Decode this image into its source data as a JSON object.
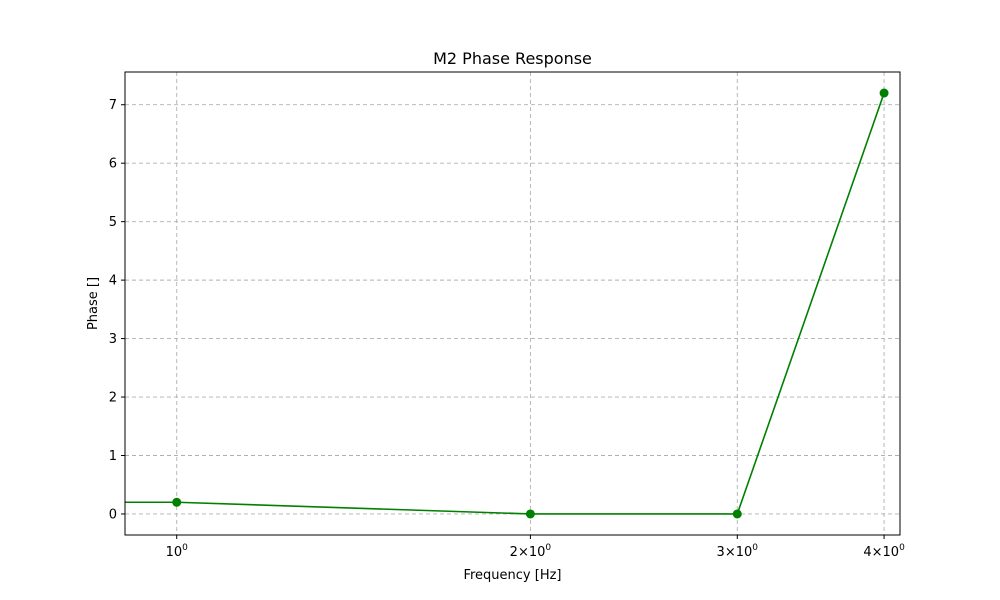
{
  "chart_data": {
    "type": "line",
    "title": "M2 Phase Response",
    "xlabel": "Frequency [Hz]",
    "ylabel": "Phase []",
    "xscale": "log",
    "x": [
      1,
      2,
      3,
      4
    ],
    "series": [
      {
        "values": [
          0.2,
          0.0,
          0.0,
          7.2
        ],
        "color": "#008000",
        "marker": "circle"
      }
    ],
    "line_extends_from_left_edge_value": 0.2,
    "xticks": [
      {
        "value": 1,
        "base": "10",
        "exp": "0",
        "coef": ""
      },
      {
        "value": 2,
        "base": "10",
        "exp": "0",
        "coef": "2"
      },
      {
        "value": 3,
        "base": "10",
        "exp": "0",
        "coef": "3"
      },
      {
        "value": 4,
        "base": "10",
        "exp": "0",
        "coef": "4"
      }
    ],
    "yticks": [
      0,
      1,
      2,
      3,
      4,
      5,
      6,
      7
    ],
    "grid": true,
    "colors": {
      "line": "#008000"
    }
  }
}
